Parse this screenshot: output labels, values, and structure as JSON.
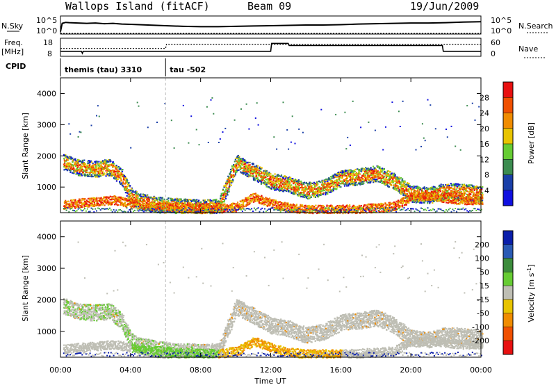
{
  "header": {
    "station": "Wallops Island (fitACF)",
    "beam": "Beam 09",
    "date": "19/Jun/2009"
  },
  "sky_panel": {
    "left_label": "N.Sky",
    "right_label": "N.Search",
    "left_ticks": [
      "10^5",
      "10^0"
    ],
    "right_ticks": [
      "10^5",
      "10^0"
    ]
  },
  "freq_panel": {
    "left_label_1": "Freq.",
    "left_label_2": "[MHz]",
    "right_label": "Nave",
    "left_ticks": [
      "18",
      "8"
    ],
    "right_ticks": [
      "60",
      "0"
    ]
  },
  "cpid": {
    "label": "CPID",
    "segments": [
      {
        "name": "themis (tau) 3310",
        "start_hr": 0.0,
        "end_hr": 6.0
      },
      {
        "name": "tau -502",
        "start_hr": 6.0,
        "end_hr": 24.0
      }
    ]
  },
  "colors": {
    "power": [
      "#1010e0",
      "#1a3fa8",
      "#3c8c50",
      "#66cc33",
      "#e8c400",
      "#f08c00",
      "#f05000",
      "#e81010"
    ],
    "velocity_pos": [
      "#0a1eaa",
      "#2a5ab4",
      "#3c8c3c",
      "#66cc33"
    ],
    "velocity_mid": "#bebeb4",
    "velocity_neg": [
      "#e8c400",
      "#f08c00",
      "#f05000",
      "#e81010"
    ]
  },
  "chart_data": [
    {
      "type": "line",
      "title": "N.Sky / N.Search",
      "x_unit": "hours UT",
      "xlim": [
        0,
        24
      ],
      "series": [
        {
          "name": "N.Sky",
          "x": [
            0,
            0.1,
            0.3,
            0.5,
            1,
            1.5,
            2,
            2.5,
            3,
            3.5,
            4,
            4.5,
            5,
            5.5,
            6,
            7,
            8,
            9,
            10,
            11,
            12,
            13,
            14,
            15,
            16,
            17,
            18,
            19,
            20,
            21,
            22,
            23,
            24
          ],
          "values": [
            0.5,
            3.0,
            3.3,
            3.2,
            3.1,
            3.0,
            3.1,
            2.9,
            3.0,
            2.8,
            2.7,
            2.6,
            2.5,
            2.4,
            2.3,
            2.1,
            2.0,
            2.0,
            2.1,
            2.2,
            2.3,
            2.4,
            2.5,
            2.5,
            2.6,
            2.8,
            2.9,
            3.0,
            3.1,
            3.1,
            3.2,
            3.4,
            3.5
          ]
        },
        {
          "name": "N.Search",
          "x": [
            0,
            24
          ],
          "values": [
            0,
            0
          ]
        }
      ]
    },
    {
      "type": "line",
      "title": "Freq. / Nave",
      "x_unit": "hours UT",
      "xlim": [
        0,
        24
      ],
      "series": [
        {
          "name": "Freq. [MHz]",
          "x": [
            0,
            1.2,
            1.25,
            1.3,
            12.0,
            12.05,
            13.0,
            13.05,
            21.8,
            21.85,
            24
          ],
          "values": [
            10.8,
            10.8,
            9.5,
            10.8,
            10.8,
            16.0,
            16.0,
            14.6,
            14.6,
            10.8,
            10.8
          ]
        },
        {
          "name": "Nave",
          "x": [
            0,
            6.0,
            6.05,
            24
          ],
          "values": [
            28,
            28,
            44,
            44
          ]
        }
      ]
    },
    {
      "type": "heatmap",
      "title": "Power [dB]",
      "x_unit": "hours UT",
      "xlim": [
        0,
        24
      ],
      "ylim": [
        180,
        4500
      ],
      "ylabel": "Slant Range [km]",
      "yticks": [
        1000,
        2000,
        3000,
        4000
      ],
      "xticks": [
        "00:00",
        "04:00",
        "08:00",
        "12:00",
        "16:00",
        "20:00",
        "00:00"
      ],
      "colorbar": {
        "label": "Power [dB]",
        "ticks": [
          4,
          8,
          12,
          16,
          20,
          24,
          28
        ]
      },
      "series": [
        {
          "name": "band",
          "x": [
            0.2,
            1.0,
            2.0,
            2.8,
            3.5,
            4.0,
            4.5,
            5.0,
            5.5,
            6.0,
            7.0,
            8.0,
            9.0,
            10.0,
            11.0,
            12.0,
            13.0,
            14.0,
            15.0,
            16.0,
            17.0,
            18.0,
            19.0,
            20.0,
            21.0,
            22.0,
            23.0,
            23.9
          ],
          "values": [
            1800,
            1650,
            1600,
            1650,
            1300,
            700,
            550,
            500,
            450,
            420,
            380,
            350,
            380,
            1800,
            1500,
            1200,
            1100,
            900,
            1000,
            1300,
            1350,
            1450,
            1200,
            800,
            750,
            900,
            850,
            800
          ]
        },
        {
          "name": "low",
          "x": [
            0.2,
            1.0,
            2.0,
            3.0,
            4.0,
            5.0,
            6.0,
            7.0,
            8.0,
            9.0,
            10.0,
            11.0,
            12.0,
            13.0,
            14.0,
            15.0,
            16.0,
            17.0,
            18.0,
            19.0,
            20.0,
            21.0,
            22.0,
            23.0,
            23.9
          ],
          "values": [
            450,
            500,
            550,
            600,
            500,
            420,
            380,
            340,
            320,
            320,
            380,
            700,
            500,
            350,
            300,
            300,
            300,
            320,
            350,
            400,
            700,
            750,
            650,
            600,
            600
          ]
        }
      ]
    },
    {
      "type": "heatmap",
      "title": "Velocity [m s^-1]",
      "x_unit": "hours UT",
      "xlim": [
        0,
        24
      ],
      "ylim": [
        180,
        4500
      ],
      "ylabel": "Slant Range [km]",
      "xlabel": "Time UT",
      "yticks": [
        1000,
        2000,
        3000,
        4000
      ],
      "xticks": [
        "00:00",
        "04:00",
        "08:00",
        "12:00",
        "16:00",
        "20:00",
        "00:00"
      ],
      "colorbar": {
        "label": "Velocity [m s",
        "label_sup": "-1",
        "label_end": "]",
        "ticks": [
          200,
          100,
          50,
          15,
          -15,
          -50,
          -100,
          -200
        ]
      }
    }
  ]
}
